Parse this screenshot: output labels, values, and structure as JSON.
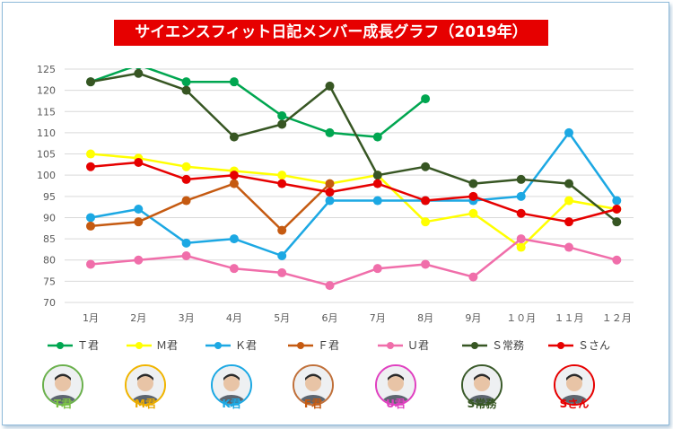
{
  "title": "サイエンスフィット日記メンバー成長グラフ（2019年）",
  "chart_data": {
    "type": "line",
    "categories": [
      "1月",
      "2月",
      "3月",
      "4月",
      "5月",
      "6月",
      "7月",
      "8月",
      "9月",
      "10月",
      "11月",
      "12月"
    ],
    "category_labels": [
      "1月",
      "2月",
      "3月",
      "4月",
      "5月",
      "6月",
      "7月",
      "8月",
      "9月",
      "１０月",
      "１１月",
      "１２月"
    ],
    "ylim": [
      70,
      125
    ],
    "yticks": [
      70,
      75,
      80,
      85,
      90,
      95,
      100,
      105,
      110,
      115,
      120,
      125
    ],
    "grid": true,
    "legend_position": "bottom",
    "series": [
      {
        "name": "Ｔ君",
        "color": "#00a650",
        "values": [
          122,
          126,
          122,
          122,
          114,
          110,
          109,
          118,
          null,
          null,
          null,
          null
        ]
      },
      {
        "name": "Ｍ君",
        "color": "#ffff00",
        "values": [
          105,
          104,
          102,
          101,
          100,
          98,
          100,
          89,
          91,
          83,
          94,
          92
        ]
      },
      {
        "name": "Ｋ君",
        "color": "#1ca8e3",
        "values": [
          90,
          92,
          84,
          85,
          81,
          94,
          94,
          94,
          94,
          95,
          110,
          94
        ]
      },
      {
        "name": "Ｆ君",
        "color": "#c55a11",
        "values": [
          88,
          89,
          94,
          98,
          87,
          98,
          null,
          null,
          null,
          null,
          null,
          null
        ]
      },
      {
        "name": "Ｕ君",
        "color": "#f06eaa",
        "values": [
          79,
          80,
          81,
          78,
          77,
          74,
          78,
          79,
          76,
          85,
          83,
          80
        ]
      },
      {
        "name": "Ｓ常務",
        "color": "#375623",
        "values": [
          122,
          124,
          120,
          109,
          112,
          121,
          100,
          102,
          98,
          99,
          98,
          89
        ]
      },
      {
        "name": "Ｓさん",
        "color": "#e60000",
        "values": [
          102,
          103,
          99,
          100,
          98,
          96,
          98,
          94,
          95,
          91,
          89,
          92
        ]
      }
    ]
  },
  "avatars": [
    {
      "label": "T君",
      "ring": "#6ab04c",
      "color": "#7cc242"
    },
    {
      "label": "M君",
      "ring": "#f0b400",
      "color": "#e8a800"
    },
    {
      "label": "K君",
      "ring": "#1ca8e3",
      "color": "#1ca8e3"
    },
    {
      "label": "F君",
      "ring": "#c0703a",
      "color": "#c55a11"
    },
    {
      "label": "U君",
      "ring": "#e040c0",
      "color": "#e040c0"
    },
    {
      "label": "S常務",
      "ring": "#3a5a2a",
      "color": "#375623"
    },
    {
      "label": "Sさん",
      "ring": "#e60000",
      "color": "#e60000"
    }
  ]
}
